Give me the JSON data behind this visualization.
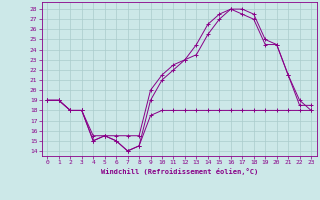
{
  "xlabel": "Windchill (Refroidissement éolien,°C)",
  "xlim": [
    -0.5,
    23.5
  ],
  "ylim": [
    13.5,
    28.7
  ],
  "yticks": [
    14,
    15,
    16,
    17,
    18,
    19,
    20,
    21,
    22,
    23,
    24,
    25,
    26,
    27,
    28
  ],
  "xticks": [
    0,
    1,
    2,
    3,
    4,
    5,
    6,
    7,
    8,
    9,
    10,
    11,
    12,
    13,
    14,
    15,
    16,
    17,
    18,
    19,
    20,
    21,
    22,
    23
  ],
  "bg_color": "#cce8e8",
  "line_color": "#880088",
  "grid_color": "#aacccc",
  "line1_x": [
    0,
    1,
    2,
    3,
    4,
    5,
    6,
    7,
    8,
    9,
    10,
    11,
    12,
    13,
    14,
    15,
    16,
    17,
    18,
    19,
    20,
    21,
    22,
    23
  ],
  "line1_y": [
    19.0,
    19.0,
    18.0,
    18.0,
    15.0,
    15.5,
    15.0,
    14.0,
    14.5,
    17.5,
    18.0,
    18.0,
    18.0,
    18.0,
    18.0,
    18.0,
    18.0,
    18.0,
    18.0,
    18.0,
    18.0,
    18.0,
    18.0,
    18.0
  ],
  "line2_x": [
    0,
    1,
    2,
    3,
    4,
    5,
    6,
    7,
    8,
    9,
    10,
    11,
    12,
    13,
    14,
    15,
    16,
    17,
    18,
    19,
    20,
    21,
    22,
    23
  ],
  "line2_y": [
    19.0,
    19.0,
    18.0,
    18.0,
    15.0,
    15.5,
    15.0,
    14.0,
    14.5,
    19.0,
    21.0,
    22.0,
    23.0,
    23.5,
    25.5,
    27.0,
    28.0,
    28.0,
    27.5,
    25.0,
    24.5,
    21.5,
    19.0,
    18.0
  ],
  "line3_x": [
    0,
    1,
    2,
    3,
    4,
    5,
    6,
    7,
    8,
    9,
    10,
    11,
    12,
    13,
    14,
    15,
    16,
    17,
    18,
    19,
    20,
    21,
    22,
    23
  ],
  "line3_y": [
    19.0,
    19.0,
    18.0,
    18.0,
    15.5,
    15.5,
    15.5,
    15.5,
    15.5,
    20.0,
    21.5,
    22.5,
    23.0,
    24.5,
    26.5,
    27.5,
    28.0,
    27.5,
    27.0,
    24.5,
    24.5,
    21.5,
    18.5,
    18.5
  ]
}
